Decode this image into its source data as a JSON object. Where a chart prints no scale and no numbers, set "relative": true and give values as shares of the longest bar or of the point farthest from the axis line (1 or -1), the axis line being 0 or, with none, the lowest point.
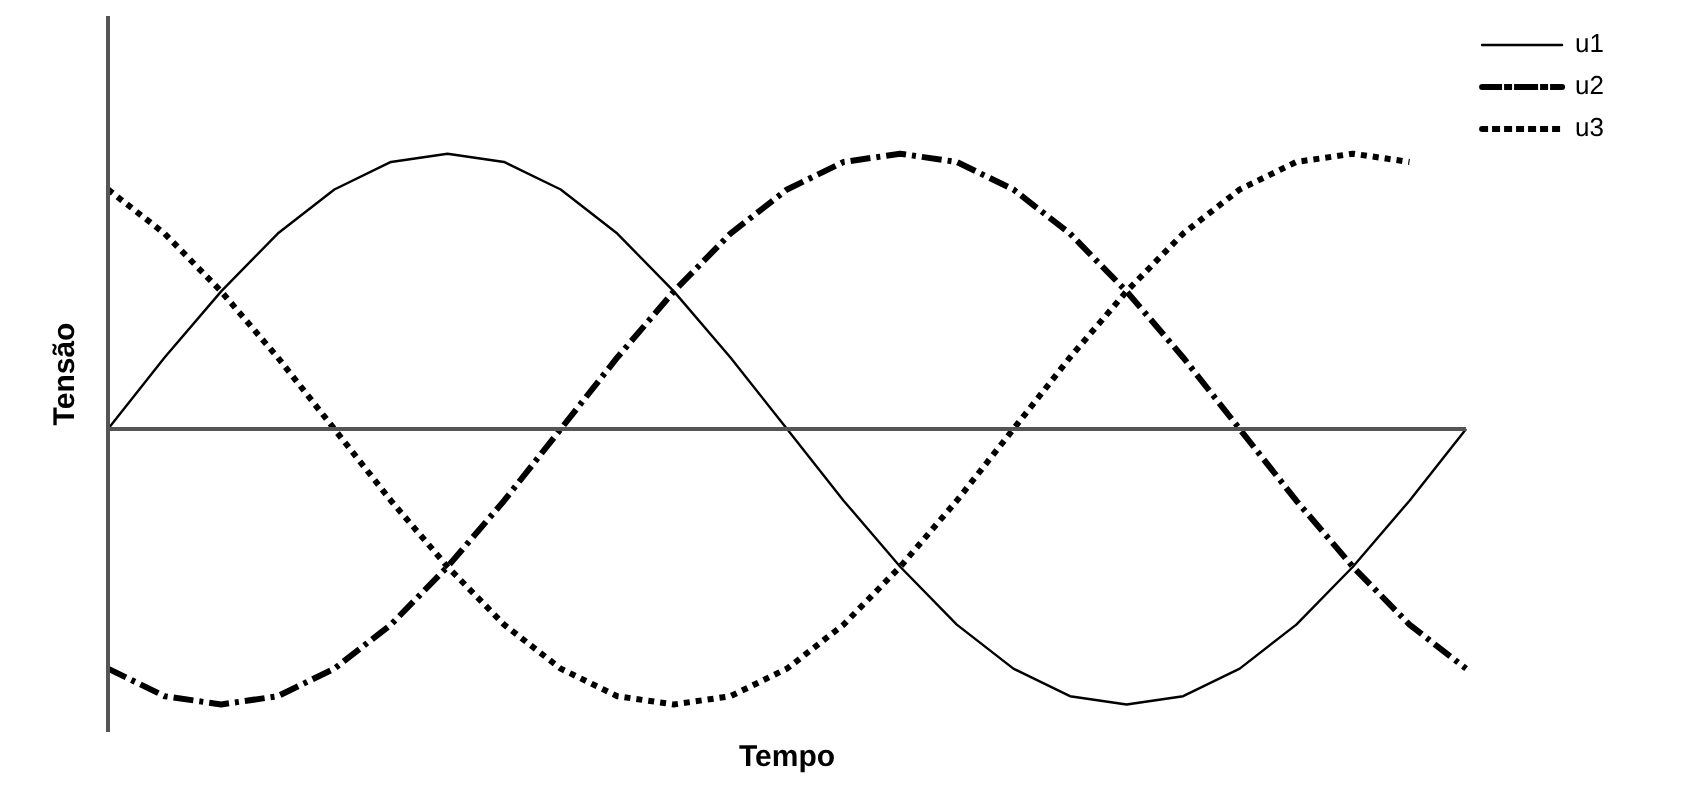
{
  "chart_data": {
    "type": "line",
    "relative": true,
    "xlabel": "Tempo",
    "ylabel": "Tensão",
    "legend": "top right",
    "marker": "none",
    "categories": [
      null,
      null,
      null,
      null,
      null,
      null,
      null,
      null,
      null,
      null,
      null,
      null,
      null,
      null,
      null,
      null,
      null,
      null,
      null,
      null,
      null,
      null,
      null,
      null,
      null
    ],
    "series": [
      {
        "name": "u1",
        "color": "#000000",
        "line_style": "solid",
        "values": [
          0,
          0.26,
          0.5,
          0.71,
          0.87,
          0.97,
          1,
          0.97,
          0.87,
          0.71,
          0.5,
          0.26,
          0,
          -0.26,
          -0.5,
          -0.71,
          -0.87,
          -0.97,
          -1,
          -0.97,
          -0.87,
          -0.71,
          -0.5,
          -0.26,
          0
        ]
      },
      {
        "name": "u2",
        "color": "#000000",
        "line_style": "dashed",
        "values": [
          -0.87,
          -0.97,
          -1,
          -0.97,
          -0.87,
          -0.71,
          -0.5,
          -0.26,
          0,
          0.26,
          0.5,
          0.71,
          0.87,
          0.97,
          1,
          0.97,
          0.87,
          0.71,
          0.5,
          0.26,
          0,
          -0.26,
          -0.5,
          -0.71,
          -0.87
        ]
      },
      {
        "name": "u3",
        "color": "#000000",
        "line_style": "dotted",
        "values": [
          0.87,
          0.71,
          0.5,
          0.26,
          0,
          -0.26,
          -0.5,
          -0.71,
          -0.87,
          -0.97,
          -1,
          -0.97,
          -0.87,
          -0.71,
          -0.5,
          -0.26,
          0,
          0.26,
          0.5,
          0.71,
          0.87,
          0.97,
          1,
          0.97,
          null
        ]
      }
    ]
  }
}
